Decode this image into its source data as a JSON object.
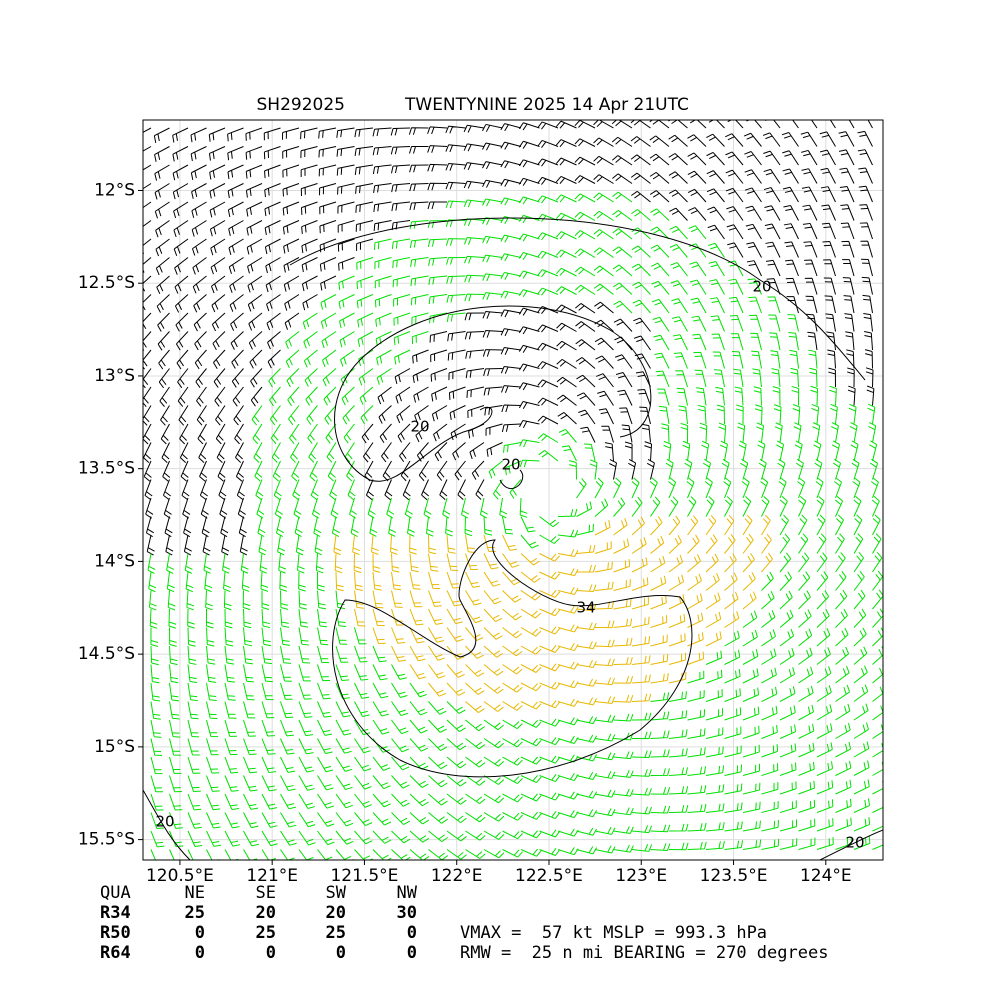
{
  "chart_data": {
    "type": "windfield",
    "title": "SH292025",
    "subtitle": "TWENTYNINE 2025 14 Apr 21UTC",
    "xlim": [
      120.3,
      124.31
    ],
    "ylim": [
      -15.61,
      -11.62
    ],
    "xticks": [
      {
        "value": 120.5,
        "label": "120.5°E"
      },
      {
        "value": 121,
        "label": "121°E"
      },
      {
        "value": 121.5,
        "label": "121.5°E"
      },
      {
        "value": 122,
        "label": "122°E"
      },
      {
        "value": 122.5,
        "label": "122.5°E"
      },
      {
        "value": 123,
        "label": "123°E"
      },
      {
        "value": 123.5,
        "label": "123.5°E"
      },
      {
        "value": 124,
        "label": "124°E"
      }
    ],
    "yticks": [
      {
        "value": -12,
        "label": "12°S"
      },
      {
        "value": -12.5,
        "label": "12.5°S"
      },
      {
        "value": -13,
        "label": "13°S"
      },
      {
        "value": -13.5,
        "label": "13.5°S"
      },
      {
        "value": -14,
        "label": "14°S"
      },
      {
        "value": -14.5,
        "label": "14.5°S"
      },
      {
        "value": -15,
        "label": "15°S"
      },
      {
        "value": -15.5,
        "label": "15.5°S"
      }
    ],
    "grid": true,
    "contour_labels": [
      "20",
      "20",
      "20",
      "34",
      "20",
      "20"
    ],
    "table": {
      "header": [
        "QUA",
        "NE",
        "SE",
        "SW",
        "NW"
      ],
      "rows": [
        [
          "R34",
          "25",
          "20",
          "20",
          "30"
        ],
        [
          "R50",
          "0",
          "25",
          "25",
          "0"
        ],
        [
          "R64",
          "0",
          "0",
          "0",
          "0"
        ]
      ]
    },
    "info": [
      "VMAX =  57 kt MSLP = 993.3 hPa",
      "RMW =  25 n mi BEARING = 270 degrees"
    ]
  }
}
